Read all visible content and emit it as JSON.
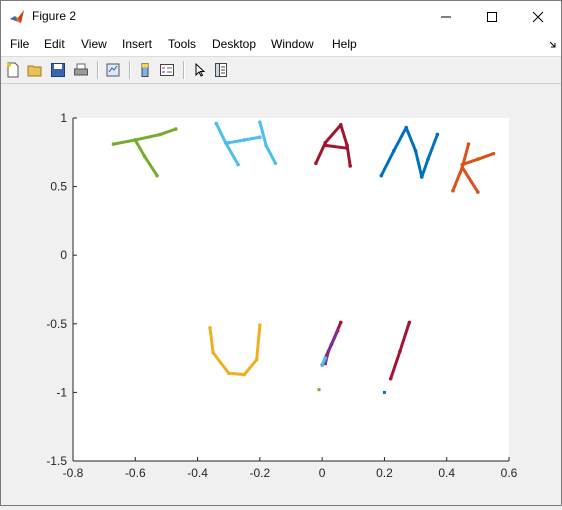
{
  "window": {
    "title": "Figure 2"
  },
  "menu": {
    "items": [
      "File",
      "Edit",
      "View",
      "Insert",
      "Tools",
      "Desktop",
      "Window",
      "Help"
    ]
  },
  "colors": {
    "green": "#77ac30",
    "lightblue": "#4dbeee",
    "crimson": "#a2142f",
    "blue": "#0072bd",
    "orange": "#d95319",
    "yellow": "#edb120",
    "purple": "#7e2f8e"
  },
  "chart_data": {
    "type": "line",
    "xlim": [
      -0.8,
      0.6
    ],
    "ylim": [
      -1.5,
      1
    ],
    "xticks": [
      -0.8,
      -0.6,
      -0.4,
      -0.2,
      0,
      0.2,
      0.4,
      0.6
    ],
    "xtick_labels": [
      "-0.8",
      "-0.6",
      "-0.4",
      "-0.2",
      "0",
      "0.2",
      "0.4",
      "0.6"
    ],
    "yticks": [
      1,
      0.5,
      0,
      -0.5,
      -1,
      -1.5
    ],
    "ytick_labels": [
      "1",
      "0.5",
      "0",
      "-0.5",
      "-1",
      "-1.5"
    ],
    "grid": false,
    "series": [
      {
        "color": "green",
        "strokes": [
          [
            [
              -0.67,
              0.81
            ],
            [
              -0.6,
              0.84
            ],
            [
              -0.52,
              0.88
            ],
            [
              -0.47,
              0.92
            ]
          ],
          [
            [
              -0.6,
              0.84
            ],
            [
              -0.57,
              0.72
            ],
            [
              -0.53,
              0.58
            ]
          ]
        ]
      },
      {
        "color": "lightblue",
        "strokes": [
          [
            [
              -0.34,
              0.96
            ],
            [
              -0.31,
              0.82
            ],
            [
              -0.27,
              0.66
            ]
          ],
          [
            [
              -0.3,
              0.82
            ],
            [
              -0.25,
              0.84
            ],
            [
              -0.2,
              0.86
            ]
          ],
          [
            [
              -0.2,
              0.97
            ],
            [
              -0.18,
              0.8
            ],
            [
              -0.15,
              0.67
            ]
          ]
        ]
      },
      {
        "color": "crimson",
        "strokes": [
          [
            [
              -0.02,
              0.67
            ],
            [
              0.01,
              0.82
            ],
            [
              0.06,
              0.95
            ],
            [
              0.08,
              0.8
            ],
            [
              0.09,
              0.65
            ]
          ],
          [
            [
              0.01,
              0.8
            ],
            [
              0.08,
              0.78
            ]
          ]
        ]
      },
      {
        "color": "blue",
        "strokes": [
          [
            [
              0.19,
              0.58
            ],
            [
              0.23,
              0.76
            ],
            [
              0.27,
              0.93
            ],
            [
              0.3,
              0.76
            ],
            [
              0.32,
              0.57
            ],
            [
              0.34,
              0.7
            ],
            [
              0.37,
              0.88
            ]
          ]
        ]
      },
      {
        "color": "orange",
        "strokes": [
          [
            [
              0.47,
              0.81
            ],
            [
              0.45,
              0.64
            ],
            [
              0.42,
              0.47
            ]
          ],
          [
            [
              0.45,
              0.66
            ],
            [
              0.5,
              0.7
            ],
            [
              0.55,
              0.74
            ]
          ],
          [
            [
              0.45,
              0.64
            ],
            [
              0.5,
              0.46
            ]
          ]
        ]
      },
      {
        "color": "yellow",
        "strokes": [
          [
            [
              -0.36,
              -0.53
            ],
            [
              -0.35,
              -0.71
            ],
            [
              -0.3,
              -0.86
            ],
            [
              -0.25,
              -0.87
            ],
            [
              -0.21,
              -0.76
            ],
            [
              -0.2,
              -0.51
            ]
          ]
        ]
      },
      {
        "color": "crimson",
        "strokes": [
          [
            [
              0.06,
              -0.49
            ],
            [
              0.03,
              -0.65
            ],
            [
              0,
              -0.8
            ]
          ],
          [
            [
              0.28,
              -0.49
            ],
            [
              0.25,
              -0.7
            ],
            [
              0.22,
              -0.9
            ]
          ]
        ]
      },
      {
        "color": "purple",
        "strokes": [
          [
            [
              0.05,
              -0.55
            ],
            [
              0.02,
              -0.7
            ],
            [
              0.01,
              -0.79
            ]
          ]
        ]
      },
      {
        "color": "lightblue",
        "strokes": [
          [
            [
              0.01,
              -0.75
            ],
            [
              0,
              -0.8
            ]
          ]
        ]
      }
    ],
    "markers": [
      {
        "color": "green",
        "x": -0.01,
        "y": -0.98
      },
      {
        "color": "blue",
        "x": 0.2,
        "y": -1.0
      }
    ]
  }
}
